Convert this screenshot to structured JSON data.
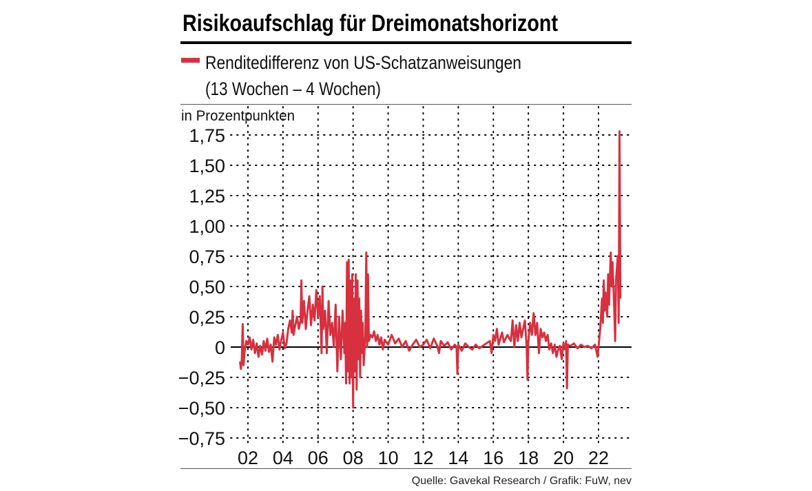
{
  "colors": {
    "series": "#d7303f",
    "axis": "#000000",
    "grid": "#000000",
    "rule": "#555555"
  },
  "chart_data": {
    "type": "line",
    "title": "Risikoaufschlag für Dreimonatshorizont",
    "legend": {
      "label_line1": "Renditedifferenz von US-Schatzanweisungen",
      "label_line2": "(13 Wochen – 4 Wochen)",
      "placement": "top-left"
    },
    "ylabel": "in Prozentpunkten",
    "source": "Quelle: Gavekal Research / Grafik: FuW, nev",
    "ylim": [
      -0.75,
      1.75
    ],
    "xlim": [
      2001.1,
      2023.9
    ],
    "grid": true,
    "yticks": [
      {
        "value": 1.75,
        "label": "1,75"
      },
      {
        "value": 1.5,
        "label": "1,50"
      },
      {
        "value": 1.25,
        "label": "1,25"
      },
      {
        "value": 1.0,
        "label": "1,00"
      },
      {
        "value": 0.75,
        "label": "0,75"
      },
      {
        "value": 0.5,
        "label": "0,50"
      },
      {
        "value": 0.25,
        "label": "0,25"
      },
      {
        "value": 0,
        "label": "0"
      },
      {
        "value": -0.25,
        "label": "−0,25"
      },
      {
        "value": -0.5,
        "label": "−0,50"
      },
      {
        "value": -0.75,
        "label": "−0,75"
      }
    ],
    "xticks": [
      {
        "value": 2002,
        "label": "02"
      },
      {
        "value": 2004,
        "label": "04"
      },
      {
        "value": 2006,
        "label": "06"
      },
      {
        "value": 2008,
        "label": "08"
      },
      {
        "value": 2010,
        "label": "10"
      },
      {
        "value": 2012,
        "label": "12"
      },
      {
        "value": 2014,
        "label": "14"
      },
      {
        "value": 2016,
        "label": "16"
      },
      {
        "value": 2018,
        "label": "18"
      },
      {
        "value": 2020,
        "label": "20"
      },
      {
        "value": 2022,
        "label": "22"
      }
    ],
    "series": [
      {
        "name": "Renditedifferenz von US-Schatzanweisungen (13 Wochen – 4 Wochen)",
        "points": [
          [
            2001.55,
            -0.12
          ],
          [
            2001.6,
            -0.18
          ],
          [
            2001.65,
            -0.1
          ],
          [
            2001.7,
            0.19
          ],
          [
            2001.75,
            -0.15
          ],
          [
            2001.8,
            -0.05
          ],
          [
            2001.9,
            0.05
          ],
          [
            2002.0,
            0.02
          ],
          [
            2002.1,
            0.08
          ],
          [
            2002.2,
            -0.02
          ],
          [
            2002.3,
            0.06
          ],
          [
            2002.4,
            -0.05
          ],
          [
            2002.5,
            0.03
          ],
          [
            2002.6,
            -0.08
          ],
          [
            2002.7,
            0.01
          ],
          [
            2002.8,
            -0.06
          ],
          [
            2002.9,
            0.05
          ],
          [
            2003.0,
            -0.03
          ],
          [
            2003.1,
            0.07
          ],
          [
            2003.2,
            -0.04
          ],
          [
            2003.3,
            0.02
          ],
          [
            2003.4,
            -0.12
          ],
          [
            2003.5,
            0.08
          ],
          [
            2003.6,
            0.02
          ],
          [
            2003.7,
            0.1
          ],
          [
            2003.8,
            -0.02
          ],
          [
            2003.9,
            0.06
          ],
          [
            2004.0,
            0.12
          ],
          [
            2004.1,
            -0.01
          ],
          [
            2004.2,
            0.03
          ],
          [
            2004.3,
            0.15
          ],
          [
            2004.4,
            0.22
          ],
          [
            2004.5,
            0.12
          ],
          [
            2004.55,
            0.3
          ],
          [
            2004.6,
            0.1
          ],
          [
            2004.7,
            0.18
          ],
          [
            2004.8,
            0.25
          ],
          [
            2004.9,
            0.15
          ],
          [
            2005.0,
            0.22
          ],
          [
            2005.05,
            0.55
          ],
          [
            2005.1,
            0.2
          ],
          [
            2005.2,
            0.38
          ],
          [
            2005.3,
            0.15
          ],
          [
            2005.4,
            0.3
          ],
          [
            2005.5,
            0.42
          ],
          [
            2005.6,
            0.18
          ],
          [
            2005.7,
            0.35
          ],
          [
            2005.8,
            0.22
          ],
          [
            2005.9,
            0.47
          ],
          [
            2006.0,
            0.25
          ],
          [
            2006.1,
            0.42
          ],
          [
            2006.2,
            -0.05
          ],
          [
            2006.25,
            0.5
          ],
          [
            2006.3,
            0.15
          ],
          [
            2006.4,
            0.3
          ],
          [
            2006.5,
            -0.05
          ],
          [
            2006.6,
            0.38
          ],
          [
            2006.7,
            0.1
          ],
          [
            2006.8,
            0.2
          ],
          [
            2006.9,
            0.0
          ],
          [
            2007.0,
            0.35
          ],
          [
            2007.1,
            -0.2
          ],
          [
            2007.2,
            0.25
          ],
          [
            2007.3,
            -0.1
          ],
          [
            2007.4,
            0.3
          ],
          [
            2007.5,
            -0.05
          ],
          [
            2007.55,
            0.2
          ],
          [
            2007.6,
            -0.3
          ],
          [
            2007.65,
            0.7
          ],
          [
            2007.7,
            -0.2
          ],
          [
            2007.75,
            0.72
          ],
          [
            2007.8,
            -0.3
          ],
          [
            2007.85,
            0.55
          ],
          [
            2007.9,
            -0.25
          ],
          [
            2007.95,
            0.6
          ],
          [
            2008.0,
            -0.5
          ],
          [
            2008.05,
            0.4
          ],
          [
            2008.1,
            -0.2
          ],
          [
            2008.15,
            0.6
          ],
          [
            2008.2,
            -0.35
          ],
          [
            2008.25,
            0.55
          ],
          [
            2008.3,
            -0.1
          ],
          [
            2008.35,
            0.4
          ],
          [
            2008.4,
            -0.25
          ],
          [
            2008.45,
            0.3
          ],
          [
            2008.5,
            -0.05
          ],
          [
            2008.55,
            0.2
          ],
          [
            2008.6,
            -0.15
          ],
          [
            2008.7,
            0.1
          ],
          [
            2008.75,
            0.78
          ],
          [
            2008.8,
            0.0
          ],
          [
            2008.85,
            0.6
          ],
          [
            2008.9,
            0.05
          ],
          [
            2009.0,
            0.1
          ],
          [
            2009.1,
            0.08
          ],
          [
            2009.2,
            0.13
          ],
          [
            2009.3,
            0.05
          ],
          [
            2009.4,
            0.1
          ],
          [
            2009.5,
            0.02
          ],
          [
            2009.6,
            0.08
          ],
          [
            2009.7,
            -0.02
          ],
          [
            2009.8,
            0.06
          ],
          [
            2010.0,
            0.02
          ],
          [
            2010.2,
            0.1
          ],
          [
            2010.4,
            0.03
          ],
          [
            2010.6,
            0.07
          ],
          [
            2010.8,
            0.0
          ],
          [
            2011.0,
            0.05
          ],
          [
            2011.2,
            -0.03
          ],
          [
            2011.4,
            0.02
          ],
          [
            2011.6,
            0.06
          ],
          [
            2011.8,
            0.0
          ],
          [
            2012.0,
            0.02
          ],
          [
            2012.2,
            0.06
          ],
          [
            2012.4,
            -0.01
          ],
          [
            2012.6,
            0.07
          ],
          [
            2012.8,
            0.01
          ],
          [
            2012.9,
            -0.05
          ],
          [
            2013.0,
            0.05
          ],
          [
            2013.2,
            0.01
          ],
          [
            2013.4,
            0.04
          ],
          [
            2013.6,
            -0.02
          ],
          [
            2013.8,
            0.02
          ],
          [
            2013.9,
            0.0
          ],
          [
            2013.95,
            -0.22
          ],
          [
            2014.0,
            0.02
          ],
          [
            2014.2,
            -0.03
          ],
          [
            2014.4,
            0.03
          ],
          [
            2014.6,
            0.0
          ],
          [
            2014.8,
            -0.02
          ],
          [
            2015.0,
            0.02
          ],
          [
            2015.2,
            -0.01
          ],
          [
            2015.4,
            0.01
          ],
          [
            2015.6,
            0.03
          ],
          [
            2015.8,
            0.05
          ],
          [
            2015.9,
            -0.05
          ],
          [
            2016.0,
            0.1
          ],
          [
            2016.1,
            0.05
          ],
          [
            2016.2,
            0.15
          ],
          [
            2016.3,
            0.02
          ],
          [
            2016.5,
            0.12
          ],
          [
            2016.6,
            0.04
          ],
          [
            2016.8,
            0.1
          ],
          [
            2017.0,
            0.05
          ],
          [
            2017.1,
            0.22
          ],
          [
            2017.2,
            0.0
          ],
          [
            2017.3,
            0.18
          ],
          [
            2017.4,
            0.05
          ],
          [
            2017.5,
            0.2
          ],
          [
            2017.6,
            0.08
          ],
          [
            2017.7,
            0.15
          ],
          [
            2017.8,
            0.22
          ],
          [
            2017.9,
            0.0
          ],
          [
            2017.95,
            -0.27
          ],
          [
            2018.0,
            0.05
          ],
          [
            2018.1,
            0.2
          ],
          [
            2018.2,
            0.1
          ],
          [
            2018.3,
            0.28
          ],
          [
            2018.4,
            0.1
          ],
          [
            2018.5,
            0.2
          ],
          [
            2018.6,
            -0.05
          ],
          [
            2018.7,
            0.15
          ],
          [
            2018.8,
            0.08
          ],
          [
            2018.9,
            0.12
          ],
          [
            2019.0,
            0.05
          ],
          [
            2019.1,
            0.1
          ],
          [
            2019.2,
            -0.02
          ],
          [
            2019.3,
            0.03
          ],
          [
            2019.4,
            -0.05
          ],
          [
            2019.5,
            0.02
          ],
          [
            2019.6,
            -0.08
          ],
          [
            2019.7,
            -0.02
          ],
          [
            2019.8,
            0.01
          ],
          [
            2019.9,
            -0.1
          ],
          [
            2020.0,
            0.03
          ],
          [
            2020.1,
            -0.02
          ],
          [
            2020.15,
            0.05
          ],
          [
            2020.2,
            -0.34
          ],
          [
            2020.25,
            0.02
          ],
          [
            2020.4,
            0.01
          ],
          [
            2020.6,
            0.03
          ],
          [
            2020.8,
            -0.01
          ],
          [
            2021.0,
            0.02
          ],
          [
            2021.2,
            0.0
          ],
          [
            2021.4,
            0.01
          ],
          [
            2021.6,
            -0.01
          ],
          [
            2021.8,
            0.02
          ],
          [
            2021.95,
            -0.08
          ],
          [
            2022.0,
            0.0
          ],
          [
            2022.1,
            0.15
          ],
          [
            2022.2,
            0.4
          ],
          [
            2022.25,
            0.2
          ],
          [
            2022.3,
            0.55
          ],
          [
            2022.35,
            0.3
          ],
          [
            2022.4,
            0.45
          ],
          [
            2022.5,
            0.25
          ],
          [
            2022.55,
            0.6
          ],
          [
            2022.6,
            0.35
          ],
          [
            2022.7,
            0.78
          ],
          [
            2022.75,
            0.5
          ],
          [
            2022.8,
            0.7
          ],
          [
            2022.9,
            0.3
          ],
          [
            2022.95,
            0.05
          ],
          [
            2023.0,
            0.55
          ],
          [
            2023.1,
            0.75
          ],
          [
            2023.15,
            0.2
          ],
          [
            2023.2,
            1.78
          ],
          [
            2023.25,
            0.4
          ]
        ]
      }
    ]
  }
}
